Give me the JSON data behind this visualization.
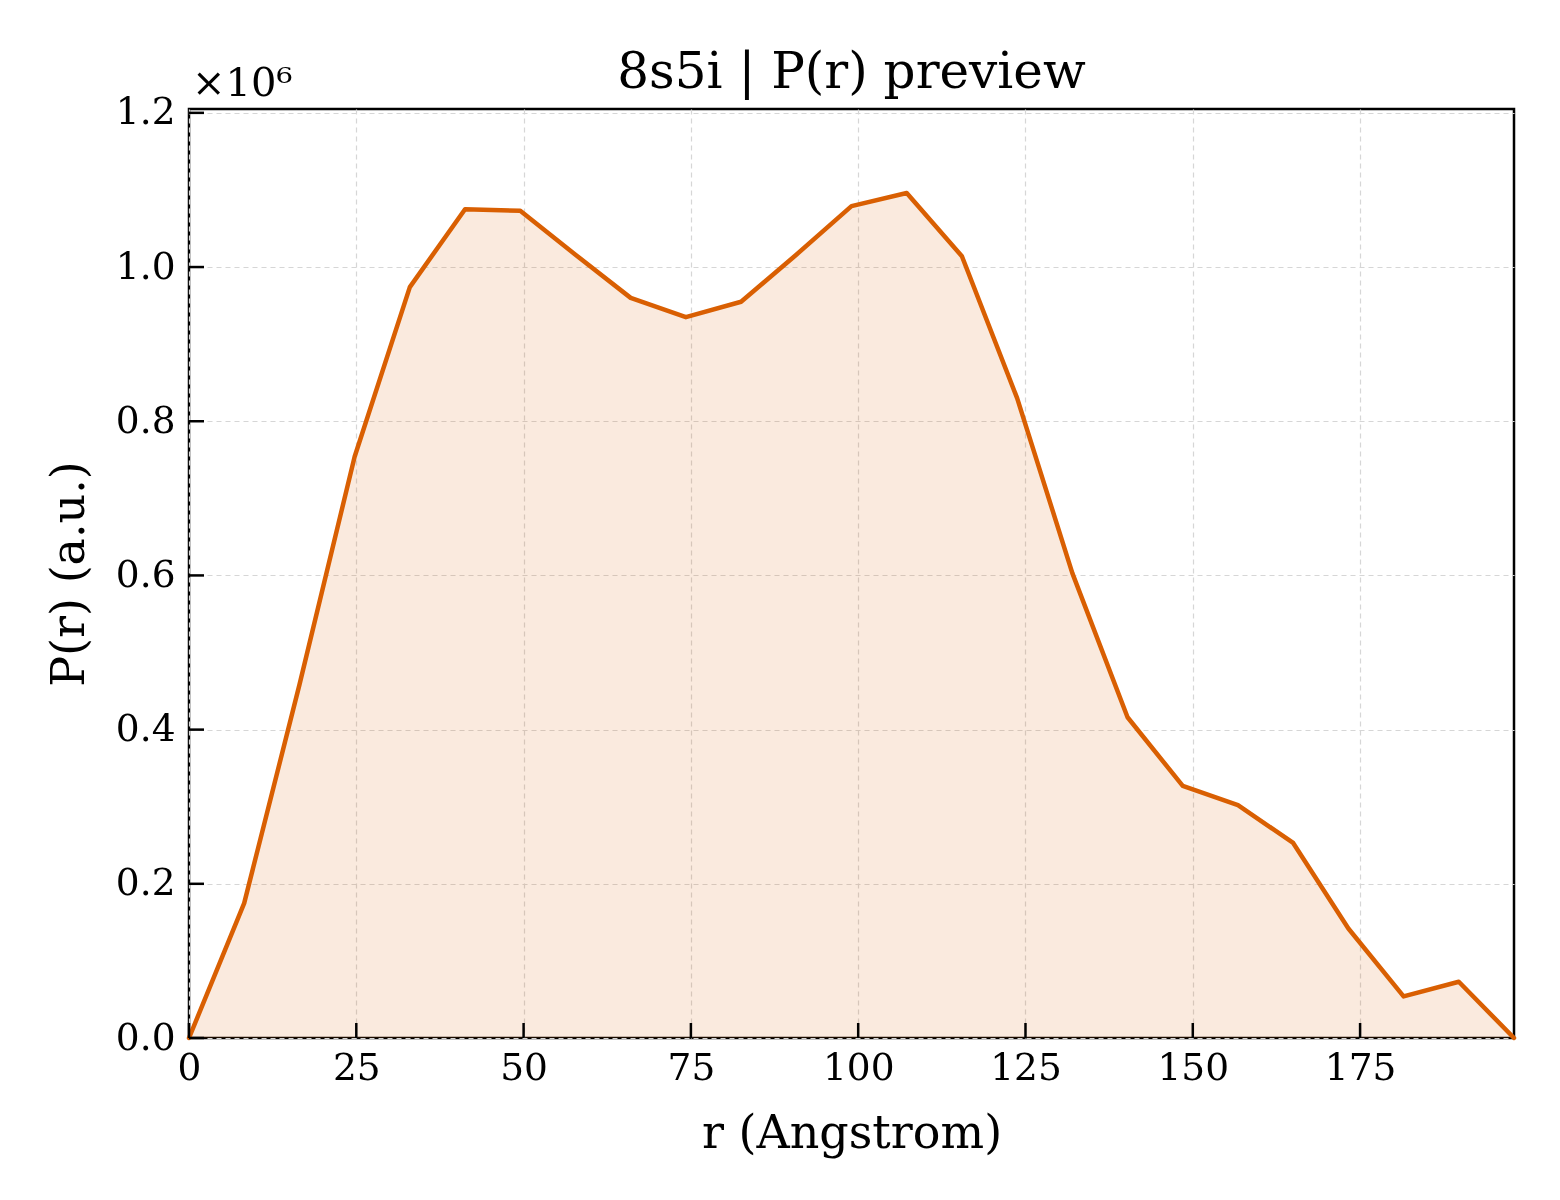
{
  "chart_data": {
    "type": "area",
    "title": "8s5i | P(r) preview",
    "xlabel": "r (Angstrom)",
    "ylabel": "P(r) (a.u.)",
    "annotations": [
      "×10⁶"
    ],
    "x": [
      0,
      8.25,
      16.5,
      24.75,
      33,
      41.25,
      49.5,
      57.75,
      66,
      74.25,
      82.5,
      90.75,
      99,
      107.25,
      115.5,
      123.75,
      132,
      140.25,
      148.5,
      156.75,
      165,
      173.25,
      181.5,
      189.75,
      198
    ],
    "series": [
      {
        "color": "#d95f02",
        "values": [
          0,
          0.175,
          0.458,
          0.754,
          0.974,
          1.075,
          1.073,
          1.016,
          0.96,
          0.935,
          0.955,
          1.016,
          1.079,
          1.096,
          1.014,
          0.83,
          0.603,
          0.416,
          0.327,
          0.302,
          0.253,
          0.142,
          0.054,
          0.073,
          0
        ]
      }
    ],
    "xlim": [
      0,
      198
    ],
    "ylim": [
      0,
      1.205
    ],
    "xticks": [
      0,
      25,
      50,
      75,
      100,
      125,
      150,
      175
    ],
    "yticks": [
      {
        "value": 0,
        "label": "0.0"
      },
      0.2,
      0.4,
      0.6,
      0.8,
      {
        "value": 1,
        "label": "1.0"
      },
      1.2
    ],
    "grid": true
  }
}
